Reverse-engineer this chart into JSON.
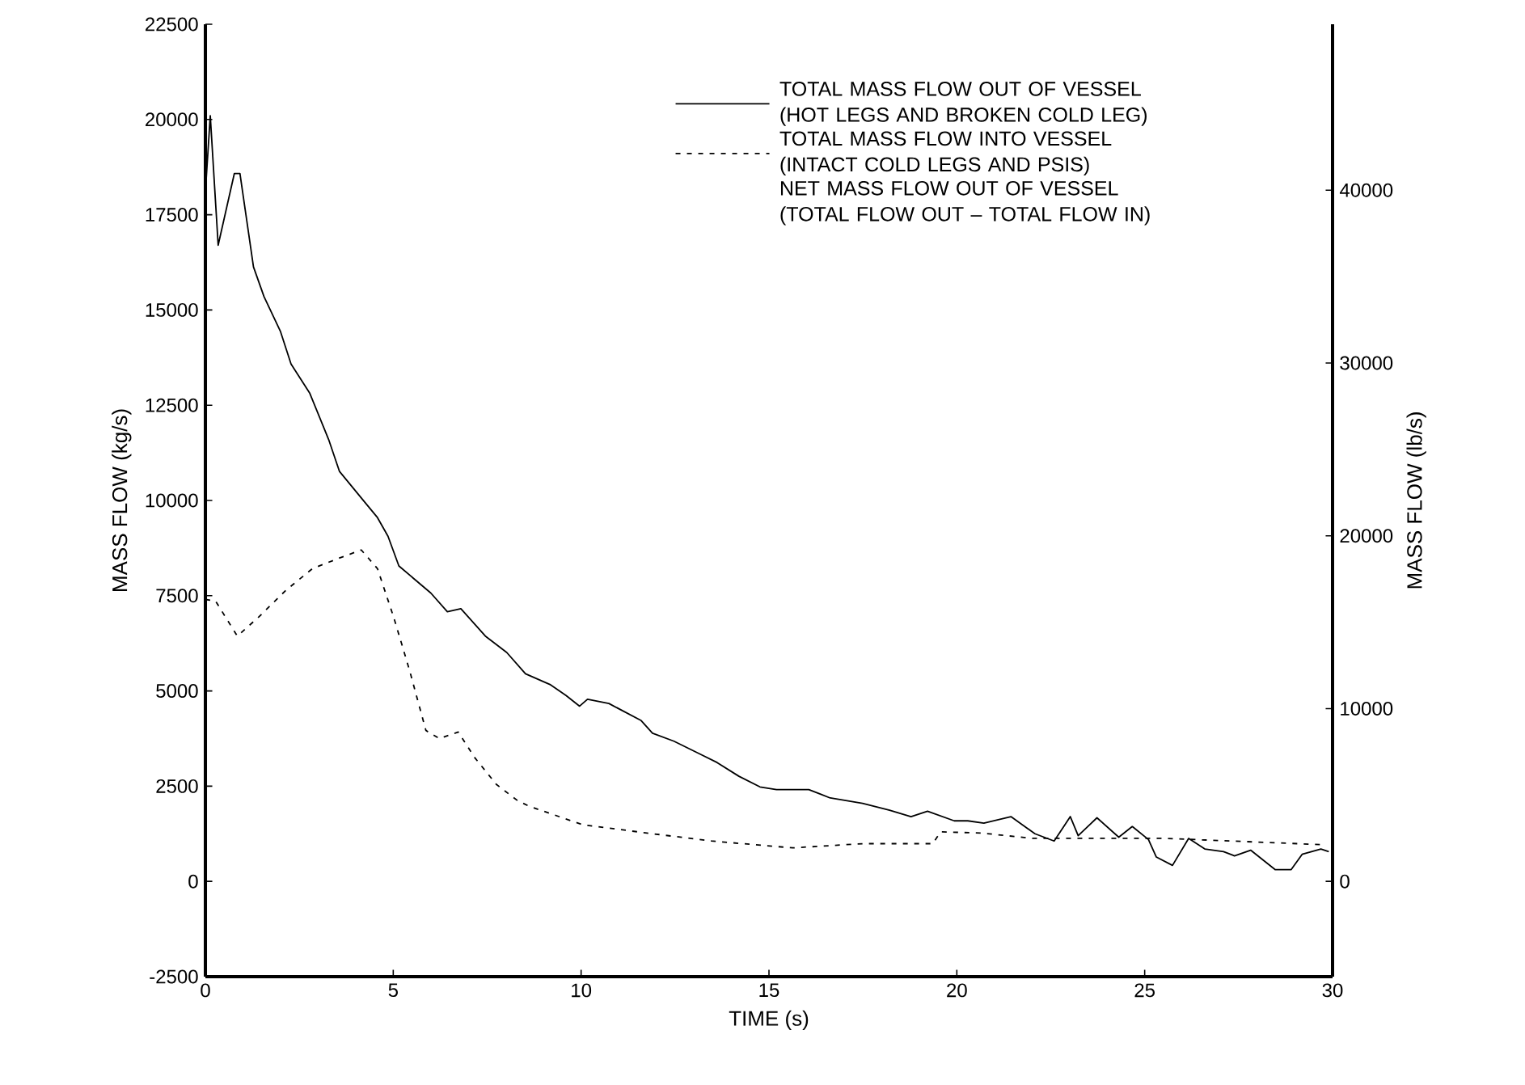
{
  "chart_data": {
    "type": "line",
    "xlabel": "TIME (s)",
    "ylabel": "MASS FLOW (kg/s)",
    "y2label": "MASS FLOW (lb/s)",
    "xlim": [
      0,
      30
    ],
    "xticks": [
      0,
      5,
      10,
      15,
      20,
      25,
      30
    ],
    "ylim": [
      -2500,
      22500
    ],
    "yticks": [
      -2500,
      0,
      2500,
      5000,
      7500,
      10000,
      12500,
      15000,
      17500,
      20000,
      22500
    ],
    "y2lim": [
      -5512,
      49604
    ],
    "y2ticks": [
      0,
      10000,
      20000,
      30000,
      40000
    ],
    "legend": "top right",
    "grid": false,
    "marker": "none",
    "annotations": [
      "NET MASS FLOW OUT OF VESSEL (TOTAL FLOW OUT – TOTAL FLOW IN)"
    ],
    "series": [
      {
        "name": "TOTAL MASS FLOW OUT OF VESSEL (HOT LEGS AND BROKEN COLD LEG)",
        "color": "#000000",
        "line_style": "solid",
        "x": [
          0,
          0.13,
          0.34,
          0.77,
          0.92,
          1.28,
          1.56,
          2.0,
          2.28,
          2.78,
          3.28,
          3.57,
          4.22,
          4.58,
          4.86,
          5.15,
          6.0,
          6.44,
          6.8,
          7.45,
          8.02,
          8.52,
          9.17,
          9.6,
          9.96,
          10.17,
          10.74,
          11.6,
          11.9,
          12.47,
          13.19,
          13.62,
          14.2,
          14.76,
          15.2,
          16.06,
          16.63,
          17.49,
          18.21,
          18.78,
          19.22,
          19.93,
          20.29,
          20.72,
          21.44,
          22.08,
          22.59,
          23.02,
          23.23,
          23.73,
          24.31,
          24.67,
          25.1,
          25.31,
          25.74,
          26.17,
          26.6,
          27.1,
          27.39,
          27.82,
          28.47,
          28.9,
          29.19,
          29.69,
          29.9
        ],
        "values": [
          18100,
          20100,
          16700,
          18580,
          18580,
          16130,
          15350,
          14430,
          13580,
          12810,
          11600,
          10760,
          9980,
          9550,
          9060,
          8280,
          7570,
          7080,
          7160,
          6440,
          6010,
          5450,
          5170,
          4880,
          4600,
          4780,
          4670,
          4220,
          3890,
          3680,
          3330,
          3120,
          2760,
          2480,
          2410,
          2410,
          2190,
          2050,
          1870,
          1700,
          1840,
          1590,
          1590,
          1530,
          1700,
          1250,
          1060,
          1700,
          1200,
          1670,
          1160,
          1440,
          1100,
          640,
          420,
          1130,
          850,
          780,
          670,
          820,
          310,
          310,
          710,
          850,
          780
        ]
      },
      {
        "name": "TOTAL MASS FLOW INTO VESSEL (INTACT COLD LEGS AND PSIS)",
        "color": "#000000",
        "line_style": "dashed",
        "x": [
          0,
          0.27,
          0.85,
          1.42,
          2.14,
          2.85,
          3.57,
          4.15,
          4.58,
          5.01,
          5.44,
          5.87,
          6.23,
          6.73,
          7.16,
          7.74,
          8.31,
          8.6,
          10.03,
          11.75,
          13.47,
          15.63,
          17.49,
          19.36,
          19.57,
          20.65,
          22.01,
          25.53,
          29.83
        ],
        "values": [
          7400,
          7360,
          6440,
          6940,
          7640,
          8210,
          8490,
          8700,
          8210,
          6940,
          5520,
          3960,
          3750,
          3920,
          3260,
          2550,
          2120,
          1980,
          1490,
          1270,
          1060,
          880,
          990,
          990,
          1300,
          1270,
          1130,
          1130,
          960
        ]
      }
    ]
  }
}
